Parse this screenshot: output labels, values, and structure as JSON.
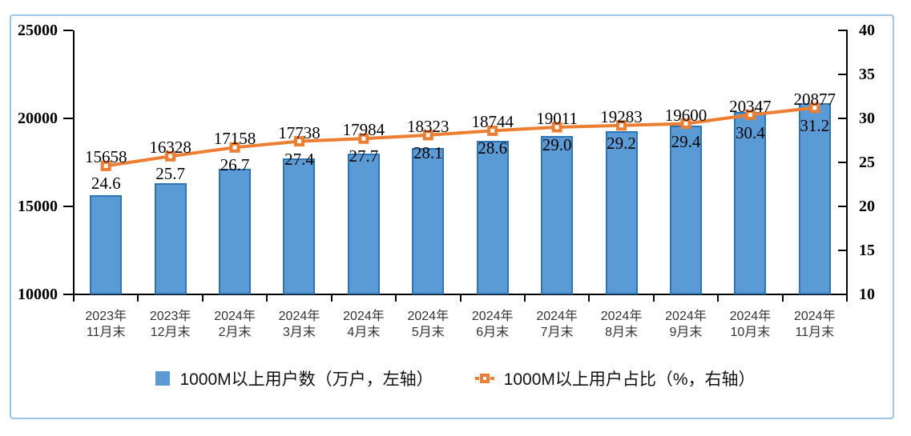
{
  "colors": {
    "bar_fill": "#5B9BD5",
    "bar_border": "#2E75B6",
    "line": "#ED7D31",
    "frame_border": "#9DC3E6",
    "axis": "#000000",
    "x_label": "#333333"
  },
  "chart_data": {
    "type": "bar",
    "subtype": "bar+line combo, dual axis",
    "categories": [
      [
        "2023年",
        "11月末"
      ],
      [
        "2023年",
        "12月末"
      ],
      [
        "2024年",
        "2月末"
      ],
      [
        "2024年",
        "3月末"
      ],
      [
        "2024年",
        "4月末"
      ],
      [
        "2024年",
        "5月末"
      ],
      [
        "2024年",
        "6月末"
      ],
      [
        "2024年",
        "7月末"
      ],
      [
        "2024年",
        "8月末"
      ],
      [
        "2024年",
        "9月末"
      ],
      [
        "2024年",
        "10月末"
      ],
      [
        "2024年",
        "11月末"
      ]
    ],
    "series": [
      {
        "name": "1000M以上用户数（万户，左轴）",
        "type": "bar",
        "axis": "left",
        "values": [
          15658,
          16328,
          17158,
          17738,
          17984,
          18323,
          18744,
          19011,
          19283,
          19600,
          20347,
          20877
        ],
        "labels": [
          "15658",
          "16328",
          "17158",
          "17738",
          "17984",
          "18323",
          "18744",
          "19011",
          "19283",
          "19600",
          "20347",
          "20877"
        ]
      },
      {
        "name": "1000M以上用户占比（%，右轴）",
        "type": "line",
        "axis": "right",
        "values": [
          24.6,
          25.7,
          26.7,
          27.4,
          27.7,
          28.1,
          28.6,
          29.0,
          29.2,
          29.4,
          30.4,
          31.2
        ],
        "labels": [
          "24.6",
          "25.7",
          "26.7",
          "27.4",
          "27.7",
          "28.1",
          "28.6",
          "29.0",
          "29.2",
          "29.4",
          "30.4",
          "31.2"
        ]
      }
    ],
    "axes": {
      "left": {
        "min": 10000,
        "max": 25000,
        "step": 5000,
        "tick_labels": [
          "25000",
          "20000",
          "15000",
          "10000"
        ]
      },
      "right": {
        "min": 10,
        "max": 40,
        "step": 5,
        "tick_labels": [
          "40",
          "35",
          "30",
          "25",
          "20",
          "15",
          "10"
        ]
      }
    },
    "grid": false,
    "legend_position": "bottom",
    "title": ""
  }
}
